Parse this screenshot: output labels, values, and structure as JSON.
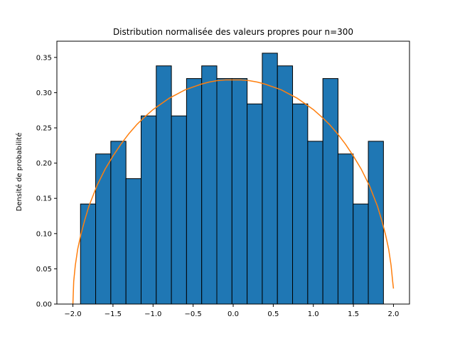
{
  "chart_data": {
    "type": "bar",
    "title": "Distribution normalisée des valeurs propres pour n=300",
    "xlabel": "",
    "ylabel": "Densité de probabilité",
    "xlim": [
      -2.2,
      2.2
    ],
    "ylim": [
      0.0,
      0.373
    ],
    "xticks": [
      -2.0,
      -1.5,
      -1.0,
      -0.5,
      0.0,
      0.5,
      1.0,
      1.5,
      2.0
    ],
    "xtick_labels": [
      "−2.0",
      "−1.5",
      "−1.0",
      "−0.5",
      "0.0",
      "0.5",
      "1.0",
      "1.5",
      "2.0"
    ],
    "yticks": [
      0.0,
      0.05,
      0.1,
      0.15,
      0.2,
      0.25,
      0.3,
      0.35
    ],
    "ytick_labels": [
      "0.00",
      "0.05",
      "0.10",
      "0.15",
      "0.20",
      "0.25",
      "0.30",
      "0.35"
    ],
    "grid": false,
    "histogram": {
      "bin_edges": [
        -1.905,
        -1.716,
        -1.527,
        -1.338,
        -1.149,
        -0.96,
        -0.771,
        -0.582,
        -0.393,
        -0.204,
        -0.015,
        0.174,
        0.363,
        0.552,
        0.741,
        0.93,
        1.119,
        1.308,
        1.497,
        1.686,
        1.875
      ],
      "densities": [
        0.142,
        0.213,
        0.231,
        0.178,
        0.267,
        0.338,
        0.267,
        0.32,
        0.338,
        0.32,
        0.32,
        0.284,
        0.356,
        0.338,
        0.284,
        0.231,
        0.32,
        0.213,
        0.142,
        0.231
      ],
      "color": "#1f77b4",
      "edgecolor": "#000000"
    },
    "curve": {
      "label": "",
      "color": "#ff7f0e",
      "x": [
        -2.0,
        -1.99,
        -1.97,
        -1.94,
        -1.9,
        -1.85,
        -1.8,
        -1.7,
        -1.6,
        -1.5,
        -1.4,
        -1.3,
        -1.2,
        -1.1,
        -1.0,
        -0.9,
        -0.8,
        -0.7,
        -0.6,
        -0.5,
        -0.4,
        -0.3,
        -0.2,
        -0.1,
        0.0,
        0.1,
        0.2,
        0.3,
        0.4,
        0.5,
        0.6,
        0.7,
        0.8,
        0.9,
        1.0,
        1.1,
        1.2,
        1.3,
        1.4,
        1.5,
        1.6,
        1.7,
        1.8,
        1.85,
        1.9,
        1.94,
        1.97,
        1.99,
        2.0
      ],
      "y": [
        0.0,
        0.032,
        0.055,
        0.078,
        0.099,
        0.12,
        0.139,
        0.168,
        0.191,
        0.21,
        0.227,
        0.242,
        0.255,
        0.266,
        0.276,
        0.284,
        0.292,
        0.298,
        0.304,
        0.308,
        0.312,
        0.315,
        0.317,
        0.318,
        0.318,
        0.318,
        0.317,
        0.315,
        0.312,
        0.308,
        0.304,
        0.298,
        0.292,
        0.284,
        0.276,
        0.266,
        0.255,
        0.242,
        0.227,
        0.21,
        0.191,
        0.168,
        0.139,
        0.12,
        0.099,
        0.078,
        0.055,
        0.032,
        0.022
      ]
    }
  }
}
